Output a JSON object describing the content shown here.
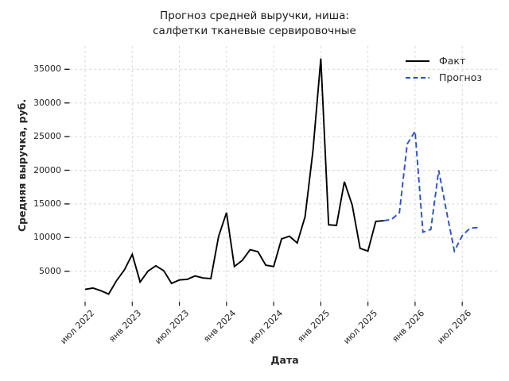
{
  "title": "Прогноз средней выручки, ниша:\nсалфетки тканевые сервировочные",
  "chart_data": {
    "type": "line",
    "title": "Прогноз средней выручки, ниша: салфетки тканевые сервировочные",
    "xlabel": "Дата",
    "ylabel": "Средняя выручка, руб.",
    "x_unit": "month",
    "x_start": "2022-07",
    "x_tick_labels": [
      "июл 2022",
      "янв 2023",
      "июл 2023",
      "янв 2024",
      "июл 2024",
      "янв 2025",
      "июл 2025",
      "янв 2026",
      "июл 2026"
    ],
    "x_tick_indices": [
      0,
      6,
      12,
      18,
      24,
      30,
      36,
      42,
      48
    ],
    "y_ticks": [
      5000,
      10000,
      15000,
      20000,
      25000,
      30000,
      35000
    ],
    "ylim": [
      400,
      38000
    ],
    "grid": "dashed",
    "grid_color": "#d9d9d9",
    "legend_position": "top-right",
    "series": [
      {
        "name": "Факт",
        "line": "solid",
        "color": "#000000",
        "start_index": 0,
        "start_month": "2022-07",
        "end_month": "2025-09",
        "values": [
          2300,
          2500,
          2100,
          1600,
          3600,
          5200,
          7500,
          3400,
          5000,
          5800,
          5100,
          3200,
          3700,
          3800,
          4300,
          4000,
          3900,
          10200,
          13700,
          5700,
          6600,
          8200,
          7900,
          5900,
          5700,
          9800,
          10200,
          9200,
          13100,
          22900,
          36600,
          11900,
          11800,
          18300,
          14800,
          8400,
          8000,
          12400,
          12500
        ]
      },
      {
        "name": "Прогноз",
        "line": "dashed",
        "color": "#2b50c6",
        "start_index": 38,
        "start_month": "2025-09",
        "end_month": "2026-09",
        "values": [
          12500,
          12700,
          13700,
          23900,
          25800,
          10800,
          11200,
          20000,
          13900,
          8000,
          10300,
          11400,
          11500
        ]
      }
    ]
  }
}
